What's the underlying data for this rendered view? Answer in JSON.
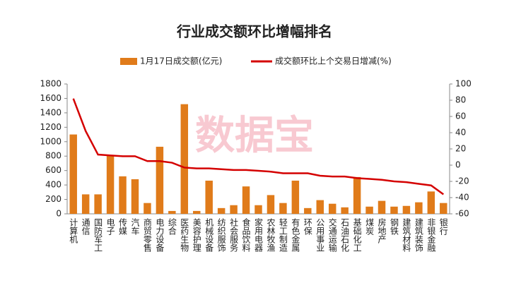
{
  "chart_data": {
    "type": "bar_line",
    "title": "行业成交额环比增幅排名",
    "watermark": "数据宝",
    "categories": [
      "计算机",
      "通信",
      "国防军工",
      "电子",
      "传媒",
      "汽车",
      "商贸零售",
      "电力设备",
      "综合",
      "医药生物",
      "美容护理",
      "机械设备",
      "纺织服饰",
      "社会服务",
      "食品饮料",
      "家用电器",
      "农林牧渔",
      "轻工制造",
      "有色金属",
      "环保",
      "公用事业",
      "交通运输",
      "石油石化",
      "基础化工",
      "煤炭",
      "房地产",
      "钢铁",
      "建筑材料",
      "建筑装饰",
      "非银金融",
      "银行"
    ],
    "series": [
      {
        "name": "1月17日成交额(亿元)",
        "color": "#e07b1a",
        "type": "bar",
        "values": [
          1100,
          270,
          270,
          810,
          520,
          480,
          150,
          930,
          40,
          1520,
          40,
          460,
          80,
          120,
          380,
          120,
          260,
          150,
          460,
          80,
          190,
          140,
          90,
          510,
          100,
          180,
          100,
          110,
          160,
          310,
          150
        ]
      },
      {
        "name": "成交额环比上个交易日增减(%)",
        "color": "#d40000",
        "type": "line",
        "axis": "y2",
        "values": [
          82,
          42,
          13,
          12,
          11,
          11,
          5,
          5,
          3,
          -3,
          -4,
          -4,
          -5,
          -6,
          -6,
          -7,
          -8,
          -10,
          -10,
          -10,
          -13,
          -14,
          -14,
          -16,
          -17,
          -18,
          -20,
          -21,
          -23,
          -25,
          -36
        ]
      }
    ],
    "ylim": [
      0,
      1800
    ],
    "yticks": [
      0,
      200,
      400,
      600,
      800,
      1000,
      1200,
      1400,
      1600,
      1800
    ],
    "y2lim": [
      -60,
      100
    ],
    "y2ticks": [
      -60,
      -40,
      -20,
      0,
      20,
      40,
      60,
      80,
      100
    ]
  }
}
